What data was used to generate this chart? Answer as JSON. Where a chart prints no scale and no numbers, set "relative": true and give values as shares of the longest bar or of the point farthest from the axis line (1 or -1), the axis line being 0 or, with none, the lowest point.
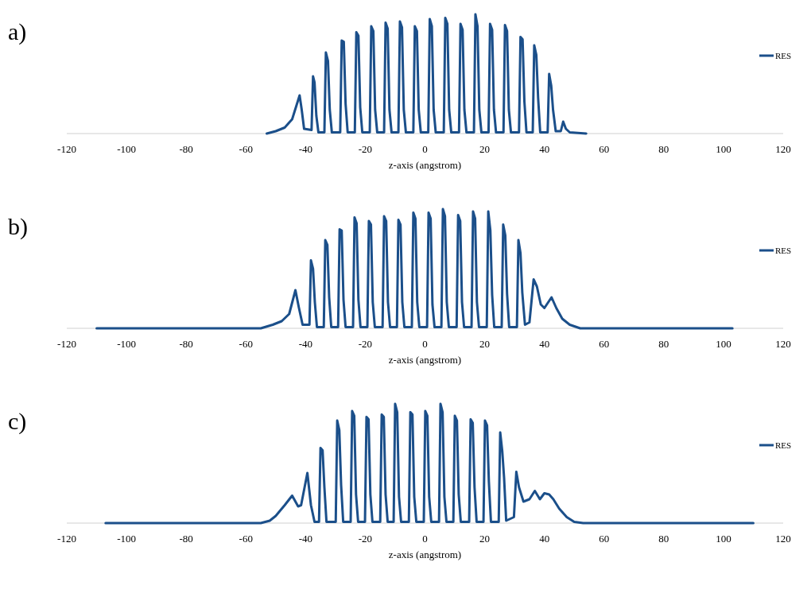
{
  "chart_data": [
    {
      "type": "line",
      "title": "a)",
      "xlabel": "z-axis (angstrom)",
      "relative": true,
      "legend": "right",
      "xlim": [
        -120,
        120
      ],
      "xticks": [
        -120,
        -100,
        -80,
        -60,
        -40,
        -20,
        0,
        20,
        40,
        60,
        80,
        100,
        120
      ],
      "series": [
        {
          "name": "RES",
          "color": "#1b4f8a",
          "x": [
            -53,
            -50,
            -47,
            -44.5,
            -42,
            -41.3,
            -40.5,
            -38,
            -37.5,
            -37,
            -36.4,
            -35.7,
            -33.7,
            -33.2,
            -32.5,
            -31.9,
            -31.2,
            -28.4,
            -27.9,
            -27.2,
            -26.6,
            -25.9,
            -23.5,
            -23,
            -22.3,
            -21.7,
            -21,
            -18.5,
            -18,
            -17.3,
            -16.7,
            -16,
            -13.7,
            -13.2,
            -12.5,
            -11.9,
            -11.2,
            -8.9,
            -8.4,
            -7.7,
            -7.1,
            -6.4,
            -3.9,
            -3.4,
            -2.7,
            -2.1,
            -1.4,
            1.1,
            1.6,
            2.3,
            2.9,
            3.6,
            6.3,
            6.8,
            7.5,
            8.1,
            8.8,
            11.4,
            11.9,
            12.6,
            13.2,
            13.9,
            16.4,
            16.9,
            17.6,
            18.2,
            18.9,
            21.3,
            21.8,
            22.5,
            23.1,
            23.8,
            26.3,
            26.8,
            27.5,
            28.1,
            28.8,
            31.5,
            32,
            32.7,
            33.3,
            34,
            36.1,
            36.6,
            37.3,
            37.9,
            38.6,
            41.1,
            41.6,
            42.3,
            42.9,
            43.8,
            45.5,
            46.3,
            47.2,
            48.5,
            54
          ],
          "values": [
            0,
            0.02,
            0.05,
            0.12,
            0.32,
            0.2,
            0.04,
            0.03,
            0.48,
            0.43,
            0.15,
            0.01,
            0.01,
            0.68,
            0.61,
            0.2,
            0.01,
            0.01,
            0.78,
            0.77,
            0.25,
            0.01,
            0.01,
            0.85,
            0.82,
            0.22,
            0.01,
            0.01,
            0.9,
            0.86,
            0.2,
            0.01,
            0.01,
            0.93,
            0.88,
            0.2,
            0.01,
            0.01,
            0.94,
            0.89,
            0.2,
            0.01,
            0.01,
            0.9,
            0.86,
            0.2,
            0.01,
            0.01,
            0.96,
            0.9,
            0.2,
            0.01,
            0.01,
            0.97,
            0.92,
            0.2,
            0.01,
            0.01,
            0.92,
            0.87,
            0.2,
            0.01,
            0.01,
            1.0,
            0.9,
            0.2,
            0.01,
            0.01,
            0.92,
            0.87,
            0.2,
            0.01,
            0.01,
            0.91,
            0.86,
            0.2,
            0.01,
            0.01,
            0.81,
            0.79,
            0.27,
            0.01,
            0.01,
            0.74,
            0.66,
            0.3,
            0.01,
            0.01,
            0.5,
            0.4,
            0.2,
            0.02,
            0.02,
            0.1,
            0.04,
            0.01,
            0
          ]
        }
      ]
    },
    {
      "type": "line",
      "title": "b)",
      "xlabel": "z-axis (angstrom)",
      "relative": true,
      "legend": "right",
      "xlim": [
        -120,
        120
      ],
      "xticks": [
        -120,
        -100,
        -80,
        -60,
        -40,
        -20,
        0,
        20,
        40,
        60,
        80,
        100,
        120
      ],
      "series": [
        {
          "name": "RES",
          "color": "#1b4f8a",
          "x": [
            -110,
            -55,
            -51,
            -48,
            -45.5,
            -43.4,
            -42.3,
            -41,
            -38.7,
            -38.2,
            -37.5,
            -36.9,
            -36.2,
            -33.9,
            -33.4,
            -32.7,
            -32.1,
            -31.4,
            -29.1,
            -28.6,
            -27.9,
            -27.3,
            -26.6,
            -24.1,
            -23.6,
            -22.9,
            -22.3,
            -21.6,
            -19.3,
            -18.8,
            -18.1,
            -17.5,
            -16.8,
            -14.2,
            -13.7,
            -13,
            -12.4,
            -11.7,
            -9.4,
            -8.9,
            -8.2,
            -7.6,
            -6.9,
            -4.4,
            -3.9,
            -3.2,
            -2.6,
            -1.9,
            0.7,
            1.2,
            1.9,
            2.5,
            3.2,
            5.5,
            6,
            6.7,
            7.3,
            8,
            10.6,
            11.1,
            11.8,
            12.4,
            13.1,
            15.6,
            16.1,
            16.8,
            17.4,
            18.1,
            20.7,
            21.2,
            21.9,
            22.5,
            23.2,
            25.7,
            26.2,
            26.9,
            27.5,
            28.2,
            30.8,
            31.3,
            32,
            32.6,
            33.5,
            35,
            36.4,
            37.5,
            38.8,
            40,
            42.4,
            44,
            46,
            48.5,
            52,
            103
          ],
          "values": [
            0,
            0,
            0.03,
            0.06,
            0.12,
            0.32,
            0.18,
            0.03,
            0.03,
            0.57,
            0.5,
            0.22,
            0.01,
            0.01,
            0.74,
            0.7,
            0.26,
            0.01,
            0.01,
            0.83,
            0.82,
            0.24,
            0.01,
            0.01,
            0.93,
            0.88,
            0.24,
            0.01,
            0.01,
            0.9,
            0.87,
            0.22,
            0.01,
            0.01,
            0.94,
            0.9,
            0.22,
            0.01,
            0.01,
            0.91,
            0.87,
            0.22,
            0.01,
            0.01,
            0.97,
            0.92,
            0.22,
            0.01,
            0.01,
            0.97,
            0.92,
            0.2,
            0.01,
            0.01,
            1.0,
            0.94,
            0.22,
            0.01,
            0.01,
            0.95,
            0.9,
            0.22,
            0.01,
            0.01,
            0.98,
            0.92,
            0.22,
            0.01,
            0.01,
            0.98,
            0.82,
            0.28,
            0.01,
            0.01,
            0.87,
            0.78,
            0.29,
            0.01,
            0.01,
            0.74,
            0.63,
            0.3,
            0.03,
            0.05,
            0.41,
            0.35,
            0.2,
            0.17,
            0.26,
            0.17,
            0.08,
            0.03,
            0,
            0
          ]
        }
      ]
    },
    {
      "type": "line",
      "title": "c)",
      "xlabel": "z-axis (angstrom)",
      "relative": true,
      "legend": "right",
      "xlim": [
        -120,
        120
      ],
      "xticks": [
        -120,
        -100,
        -80,
        -60,
        -40,
        -20,
        0,
        20,
        40,
        60,
        80,
        100,
        120
      ],
      "series": [
        {
          "name": "RES",
          "color": "#1b4f8a",
          "x": [
            -107,
            -55,
            -52,
            -50,
            -47,
            -44.5,
            -42.5,
            -41.5,
            -39.4,
            -38.2,
            -37,
            -35.5,
            -35,
            -34.3,
            -33.7,
            -33,
            -29.9,
            -29.4,
            -28.7,
            -28.1,
            -27.4,
            -24.9,
            -24.4,
            -23.7,
            -23.1,
            -22.4,
            -20.1,
            -19.6,
            -18.9,
            -18.3,
            -17.6,
            -15,
            -14.5,
            -13.8,
            -13.2,
            -12.5,
            -10.5,
            -10,
            -9.3,
            -8.7,
            -8,
            -5.4,
            -4.9,
            -4.2,
            -3.6,
            -2.9,
            -0.4,
            0.1,
            0.8,
            1.4,
            2.1,
            4.7,
            5.2,
            5.9,
            6.5,
            7.2,
            9.5,
            10,
            10.7,
            11.3,
            12,
            14.8,
            15.3,
            16,
            16.6,
            17.3,
            19.6,
            20.1,
            20.8,
            21.4,
            22.1,
            24.7,
            25.2,
            25.9,
            26.5,
            27.2,
            29.8,
            30.6,
            31.5,
            33,
            35,
            36.8,
            38.5,
            40,
            41.6,
            43,
            45,
            47.5,
            50,
            53,
            110
          ],
          "values": [
            0,
            0,
            0.02,
            0.06,
            0.15,
            0.23,
            0.14,
            0.15,
            0.42,
            0.15,
            0.01,
            0.01,
            0.63,
            0.61,
            0.3,
            0.01,
            0.01,
            0.86,
            0.78,
            0.32,
            0.01,
            0.01,
            0.94,
            0.9,
            0.24,
            0.01,
            0.01,
            0.89,
            0.87,
            0.24,
            0.01,
            0.01,
            0.91,
            0.89,
            0.24,
            0.01,
            0.01,
            1.0,
            0.93,
            0.22,
            0.01,
            0.01,
            0.93,
            0.91,
            0.22,
            0.01,
            0.01,
            0.94,
            0.9,
            0.22,
            0.01,
            0.01,
            1.0,
            0.93,
            0.22,
            0.01,
            0.01,
            0.9,
            0.86,
            0.24,
            0.01,
            0.01,
            0.87,
            0.84,
            0.3,
            0.01,
            0.01,
            0.86,
            0.82,
            0.35,
            0.01,
            0.01,
            0.76,
            0.6,
            0.38,
            0.02,
            0.05,
            0.43,
            0.3,
            0.18,
            0.2,
            0.27,
            0.2,
            0.25,
            0.24,
            0.2,
            0.12,
            0.05,
            0.01,
            0,
            0
          ]
        }
      ]
    }
  ]
}
